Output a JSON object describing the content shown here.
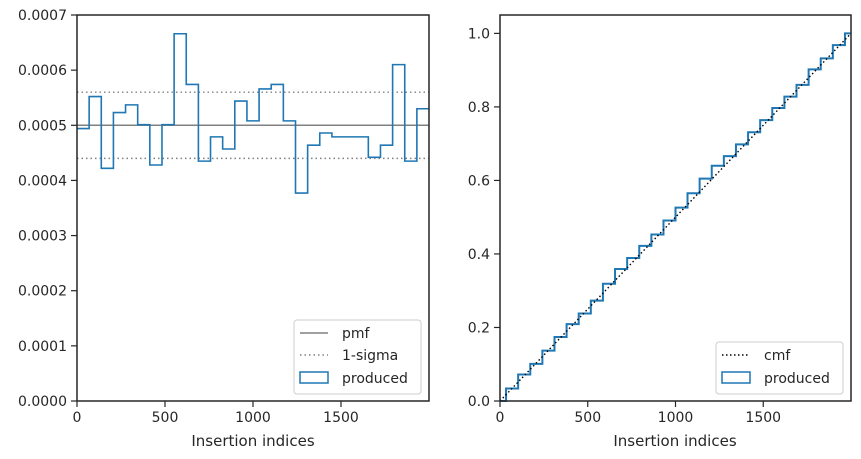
{
  "chart_data": [
    {
      "type": "histogram-step",
      "xlabel": "Insertion indices",
      "ylabel": "",
      "xlim": [
        0,
        2000
      ],
      "ylim": [
        0,
        0.0007
      ],
      "xticks": [
        0,
        500,
        1000,
        1500
      ],
      "xtick_labels": [
        "0",
        "500",
        "1000",
        "1500"
      ],
      "yticks": [
        0,
        0.0001,
        0.0002,
        0.0003,
        0.0004,
        0.0005,
        0.0006,
        0.0007
      ],
      "ytick_labels": [
        "0.0000",
        "0.0001",
        "0.0002",
        "0.0003",
        "0.0004",
        "0.0005",
        "0.0006",
        "0.0007"
      ],
      "bin_width": 68.97,
      "values": [
        0.000494,
        0.000552,
        0.000422,
        0.000523,
        0.000537,
        0.000501,
        0.000428,
        0.000501,
        0.000666,
        0.000574,
        0.000435,
        0.000479,
        0.000457,
        0.000544,
        0.000508,
        0.000566,
        0.000574,
        0.000508,
        0.000377,
        0.000464,
        0.000486,
        0.000479,
        0.000479,
        0.000479,
        0.000442,
        0.000464,
        0.00061,
        0.000435,
        0.00053
      ],
      "pmf": 0.0005,
      "sigma_band": [
        0.00044,
        0.00056
      ],
      "legend": {
        "position": "lower-right",
        "items": [
          "pmf",
          "1-sigma",
          "produced"
        ]
      },
      "colors": {
        "produced": "#1f77b4",
        "pmf": "#808080",
        "sigma": "#808080"
      }
    },
    {
      "type": "line",
      "xlabel": "Insertion indices",
      "ylabel": "",
      "xlim": [
        0,
        2000
      ],
      "ylim": [
        0,
        1.05
      ],
      "xticks": [
        0,
        500,
        1000,
        1500
      ],
      "xtick_labels": [
        "0",
        "500",
        "1000",
        "1500"
      ],
      "yticks": [
        0,
        0.2,
        0.4,
        0.6,
        0.8,
        1.0
      ],
      "ytick_labels": [
        "0.0",
        "0.2",
        "0.4",
        "0.6",
        "0.8",
        "1.0"
      ],
      "series": [
        {
          "name": "cmf",
          "style": "dotted",
          "x": [
            0,
            2000
          ],
          "y": [
            0,
            1
          ]
        },
        {
          "name": "produced",
          "style": "step",
          "x": [
            0,
            69,
            138,
            207,
            276,
            345,
            414,
            483,
            552,
            621,
            690,
            759,
            828,
            897,
            966,
            1034,
            1103,
            1172,
            1241,
            1310,
            1379,
            1448,
            1517,
            1586,
            1655,
            1724,
            1793,
            1862,
            1931,
            2000
          ],
          "y": [
            0,
            0.034,
            0.072,
            0.101,
            0.137,
            0.174,
            0.209,
            0.238,
            0.273,
            0.319,
            0.359,
            0.389,
            0.422,
            0.453,
            0.491,
            0.526,
            0.565,
            0.605,
            0.64,
            0.666,
            0.698,
            0.731,
            0.764,
            0.797,
            0.828,
            0.86,
            0.902,
            0.932,
            0.968,
            1.0
          ]
        }
      ],
      "legend": {
        "position": "lower-right",
        "items": [
          "cmf",
          "produced"
        ]
      },
      "colors": {
        "produced": "#1f77b4",
        "cmf": "#000000"
      }
    }
  ]
}
